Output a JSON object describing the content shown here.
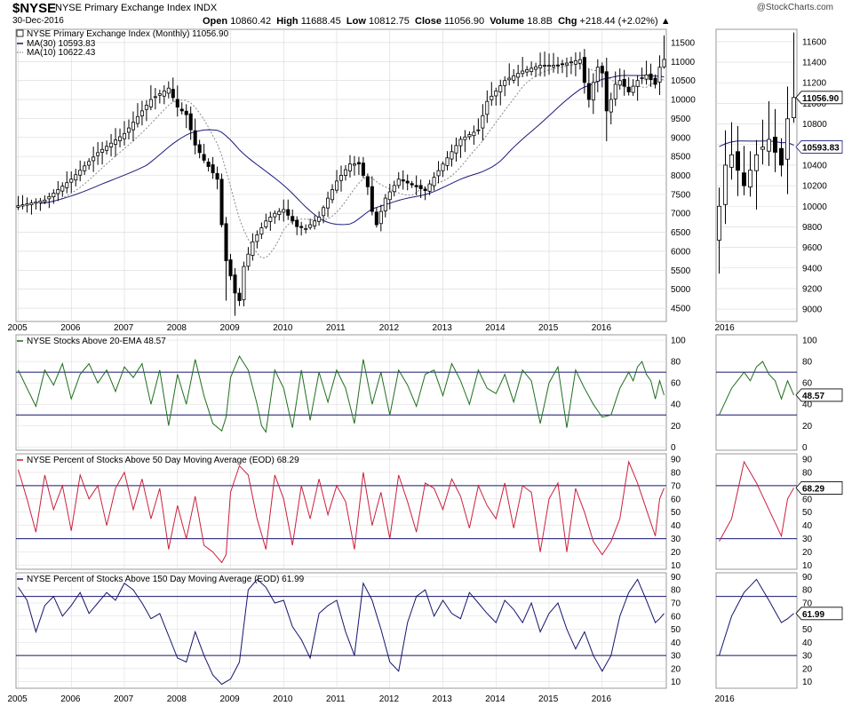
{
  "header": {
    "symbol": "$NYSE",
    "name": "NYSE Primary Exchange Index INDX",
    "date": "30-Dec-2016",
    "open_label": "Open",
    "open": "10860.42",
    "high_label": "High",
    "high": "11688.45",
    "low_label": "Low",
    "low": "10812.75",
    "close_label": "Close",
    "close": "11056.90",
    "volume_label": "Volume",
    "volume": "18.8B",
    "chg_label": "Chg",
    "chg": "+218.44 (+2.02%)",
    "watermark": "@StockCharts.com"
  },
  "colors": {
    "ma30": "#1a1a7a",
    "ma10": "#888888",
    "green": "#1e6e1e",
    "red": "#cc1e3c",
    "navy": "#14146e",
    "hline": "#14146e",
    "grid": "#d8d8d8"
  },
  "chart_data": [
    {
      "id": "price",
      "type": "candlestick",
      "title": "NYSE Primary Exchange Index (Monthly) 11056.90",
      "legend": [
        {
          "name": "MA(30) 10593.83",
          "style": "solid"
        },
        {
          "name": "MA(10) 10622.43",
          "style": "dotted"
        }
      ],
      "x_ticks": [
        "2005",
        "2006",
        "2007",
        "2008",
        "2009",
        "2010",
        "2011",
        "2012",
        "2013",
        "2014",
        "2015",
        "2016"
      ],
      "y_ticks": [
        4500,
        5000,
        5500,
        6000,
        6500,
        7000,
        7500,
        8000,
        8500,
        9000,
        9500,
        10000,
        10500,
        11000,
        11500
      ],
      "ylim": [
        4150,
        11850
      ],
      "close_anchors": [
        [
          0,
          7200
        ],
        [
          6,
          7350
        ],
        [
          12,
          7900
        ],
        [
          18,
          8600
        ],
        [
          24,
          9100
        ],
        [
          30,
          10000
        ],
        [
          34,
          10300
        ],
        [
          36,
          9800
        ],
        [
          38,
          9600
        ],
        [
          40,
          8800
        ],
        [
          42,
          8400
        ],
        [
          45,
          7900
        ],
        [
          46,
          6700
        ],
        [
          47,
          5750
        ],
        [
          48,
          5350
        ],
        [
          49,
          4900
        ],
        [
          50,
          4700
        ],
        [
          51,
          5600
        ],
        [
          53,
          6250
        ],
        [
          56,
          6800
        ],
        [
          58,
          7000
        ],
        [
          60,
          7100
        ],
        [
          63,
          6650
        ],
        [
          65,
          6600
        ],
        [
          68,
          6900
        ],
        [
          70,
          7400
        ],
        [
          72,
          7850
        ],
        [
          75,
          8300
        ],
        [
          77,
          8300
        ],
        [
          79,
          7700
        ],
        [
          80,
          7050
        ],
        [
          81,
          6700
        ],
        [
          83,
          7400
        ],
        [
          86,
          7900
        ],
        [
          89,
          7750
        ],
        [
          92,
          7600
        ],
        [
          96,
          8300
        ],
        [
          100,
          8950
        ],
        [
          104,
          9200
        ],
        [
          106,
          9950
        ],
        [
          110,
          10500
        ],
        [
          114,
          10750
        ],
        [
          118,
          10900
        ],
        [
          122,
          10900
        ],
        [
          127,
          11050
        ],
        [
          128,
          10450
        ],
        [
          129,
          10000
        ],
        [
          130,
          10450
        ],
        [
          131,
          10850
        ],
        [
          132,
          10700
        ],
        [
          133,
          9700
        ],
        [
          134,
          10000
        ],
        [
          135,
          10400
        ],
        [
          136,
          10500
        ],
        [
          138,
          10200
        ],
        [
          140,
          10500
        ],
        [
          142,
          10650
        ],
        [
          144,
          10400
        ],
        [
          145,
          10850
        ],
        [
          146,
          11056.9
        ]
      ],
      "last": {
        "open": 10860.42,
        "high": 11688.45,
        "low": 10812.75,
        "close": 11056.9
      },
      "value_labels": [
        {
          "series": "close",
          "text": "11056.90"
        },
        {
          "series": "ma30",
          "text": "10593.83"
        }
      ],
      "inset_x_ticks": [
        "2016"
      ],
      "inset_y_ticks": [
        9000,
        9200,
        9400,
        9600,
        9800,
        10000,
        10200,
        10400,
        10600,
        10800,
        11000,
        11200,
        11400,
        11600
      ],
      "inset_ylim": [
        8880,
        11720
      ]
    },
    {
      "id": "ema20",
      "type": "line",
      "title": "NYSE Stocks Above 20-EMA 48.57",
      "last_value": "48.57",
      "y_ticks": [
        0,
        20,
        40,
        60,
        80,
        100
      ],
      "ylim": [
        -3,
        105
      ],
      "hlines": [
        70,
        30
      ],
      "anchors": [
        [
          0,
          72
        ],
        [
          2,
          55
        ],
        [
          4,
          38
        ],
        [
          6,
          72
        ],
        [
          8,
          58
        ],
        [
          10,
          78
        ],
        [
          12,
          45
        ],
        [
          14,
          68
        ],
        [
          16,
          78
        ],
        [
          18,
          60
        ],
        [
          20,
          72
        ],
        [
          22,
          52
        ],
        [
          24,
          75
        ],
        [
          26,
          65
        ],
        [
          28,
          78
        ],
        [
          30,
          40
        ],
        [
          32,
          72
        ],
        [
          34,
          20
        ],
        [
          36,
          68
        ],
        [
          38,
          40
        ],
        [
          40,
          82
        ],
        [
          42,
          48
        ],
        [
          44,
          22
        ],
        [
          46,
          15
        ],
        [
          47,
          28
        ],
        [
          48,
          65
        ],
        [
          50,
          85
        ],
        [
          52,
          72
        ],
        [
          54,
          40
        ],
        [
          55,
          20
        ],
        [
          56,
          14
        ],
        [
          58,
          72
        ],
        [
          60,
          55
        ],
        [
          62,
          18
        ],
        [
          64,
          72
        ],
        [
          66,
          25
        ],
        [
          68,
          70
        ],
        [
          70,
          42
        ],
        [
          72,
          72
        ],
        [
          74,
          55
        ],
        [
          76,
          22
        ],
        [
          78,
          82
        ],
        [
          80,
          40
        ],
        [
          82,
          70
        ],
        [
          84,
          30
        ],
        [
          86,
          72
        ],
        [
          88,
          58
        ],
        [
          90,
          38
        ],
        [
          92,
          68
        ],
        [
          94,
          72
        ],
        [
          96,
          48
        ],
        [
          98,
          78
        ],
        [
          100,
          62
        ],
        [
          102,
          40
        ],
        [
          104,
          72
        ],
        [
          106,
          55
        ],
        [
          108,
          50
        ],
        [
          110,
          68
        ],
        [
          112,
          42
        ],
        [
          114,
          72
        ],
        [
          116,
          62
        ],
        [
          118,
          22
        ],
        [
          120,
          60
        ],
        [
          122,
          75
        ],
        [
          124,
          18
        ],
        [
          126,
          72
        ],
        [
          128,
          55
        ],
        [
          130,
          40
        ],
        [
          132,
          28
        ],
        [
          134,
          30
        ],
        [
          136,
          55
        ],
        [
          138,
          70
        ],
        [
          139,
          62
        ],
        [
          140,
          75
        ],
        [
          141,
          80
        ],
        [
          142,
          68
        ],
        [
          143,
          62
        ],
        [
          144,
          45
        ],
        [
          145,
          62
        ],
        [
          146,
          48.57
        ]
      ]
    },
    {
      "id": "pct50",
      "type": "line",
      "title": "NYSE Percent of Stocks Above 50 Day Moving Average (EOD) 68.29",
      "last_value": "68.29",
      "y_ticks": [
        10,
        20,
        30,
        40,
        50,
        60,
        70,
        80,
        90
      ],
      "ylim": [
        7,
        94
      ],
      "hlines": [
        70,
        30
      ],
      "anchors": [
        [
          0,
          82
        ],
        [
          2,
          60
        ],
        [
          4,
          35
        ],
        [
          6,
          78
        ],
        [
          8,
          52
        ],
        [
          10,
          70
        ],
        [
          12,
          36
        ],
        [
          14,
          78
        ],
        [
          16,
          60
        ],
        [
          18,
          70
        ],
        [
          20,
          40
        ],
        [
          22,
          68
        ],
        [
          24,
          80
        ],
        [
          26,
          52
        ],
        [
          28,
          75
        ],
        [
          30,
          45
        ],
        [
          32,
          68
        ],
        [
          34,
          22
        ],
        [
          36,
          55
        ],
        [
          38,
          30
        ],
        [
          40,
          62
        ],
        [
          42,
          25
        ],
        [
          44,
          20
        ],
        [
          46,
          12
        ],
        [
          47,
          18
        ],
        [
          48,
          65
        ],
        [
          50,
          85
        ],
        [
          52,
          78
        ],
        [
          54,
          45
        ],
        [
          56,
          22
        ],
        [
          58,
          78
        ],
        [
          60,
          60
        ],
        [
          62,
          25
        ],
        [
          64,
          70
        ],
        [
          66,
          45
        ],
        [
          68,
          75
        ],
        [
          70,
          48
        ],
        [
          72,
          70
        ],
        [
          74,
          58
        ],
        [
          76,
          22
        ],
        [
          78,
          80
        ],
        [
          80,
          40
        ],
        [
          82,
          65
        ],
        [
          84,
          30
        ],
        [
          86,
          78
        ],
        [
          88,
          58
        ],
        [
          90,
          35
        ],
        [
          92,
          72
        ],
        [
          94,
          68
        ],
        [
          96,
          52
        ],
        [
          98,
          75
        ],
        [
          100,
          62
        ],
        [
          102,
          38
        ],
        [
          104,
          70
        ],
        [
          106,
          55
        ],
        [
          108,
          45
        ],
        [
          110,
          72
        ],
        [
          112,
          38
        ],
        [
          114,
          70
        ],
        [
          116,
          65
        ],
        [
          118,
          20
        ],
        [
          120,
          60
        ],
        [
          122,
          72
        ],
        [
          124,
          20
        ],
        [
          126,
          68
        ],
        [
          128,
          50
        ],
        [
          130,
          28
        ],
        [
          132,
          18
        ],
        [
          134,
          28
        ],
        [
          136,
          45
        ],
        [
          138,
          88
        ],
        [
          140,
          72
        ],
        [
          142,
          52
        ],
        [
          144,
          32
        ],
        [
          145,
          60
        ],
        [
          146,
          68.29
        ]
      ]
    },
    {
      "id": "pct150",
      "type": "line",
      "title": "NYSE Percent of Stocks Above 150 Day Moving Average (EOD) 61.99",
      "last_value": "61.99",
      "y_ticks": [
        10,
        20,
        30,
        40,
        50,
        60,
        70,
        80,
        90
      ],
      "ylim": [
        5,
        93
      ],
      "hlines": [
        75,
        30
      ],
      "anchors": [
        [
          0,
          82
        ],
        [
          2,
          72
        ],
        [
          4,
          48
        ],
        [
          6,
          68
        ],
        [
          8,
          75
        ],
        [
          10,
          60
        ],
        [
          12,
          68
        ],
        [
          14,
          78
        ],
        [
          16,
          62
        ],
        [
          18,
          70
        ],
        [
          20,
          78
        ],
        [
          22,
          72
        ],
        [
          24,
          85
        ],
        [
          26,
          80
        ],
        [
          28,
          70
        ],
        [
          30,
          58
        ],
        [
          32,
          62
        ],
        [
          34,
          45
        ],
        [
          36,
          28
        ],
        [
          38,
          25
        ],
        [
          40,
          48
        ],
        [
          42,
          30
        ],
        [
          44,
          15
        ],
        [
          46,
          8
        ],
        [
          48,
          12
        ],
        [
          50,
          25
        ],
        [
          52,
          80
        ],
        [
          54,
          88
        ],
        [
          56,
          82
        ],
        [
          58,
          70
        ],
        [
          60,
          72
        ],
        [
          62,
          52
        ],
        [
          64,
          42
        ],
        [
          66,
          28
        ],
        [
          68,
          62
        ],
        [
          70,
          68
        ],
        [
          72,
          72
        ],
        [
          74,
          48
        ],
        [
          76,
          30
        ],
        [
          78,
          85
        ],
        [
          80,
          72
        ],
        [
          82,
          50
        ],
        [
          84,
          25
        ],
        [
          86,
          18
        ],
        [
          88,
          55
        ],
        [
          90,
          75
        ],
        [
          92,
          80
        ],
        [
          94,
          60
        ],
        [
          96,
          72
        ],
        [
          98,
          62
        ],
        [
          100,
          58
        ],
        [
          102,
          78
        ],
        [
          104,
          70
        ],
        [
          106,
          62
        ],
        [
          108,
          55
        ],
        [
          110,
          72
        ],
        [
          112,
          65
        ],
        [
          114,
          55
        ],
        [
          116,
          70
        ],
        [
          118,
          48
        ],
        [
          120,
          62
        ],
        [
          122,
          70
        ],
        [
          124,
          50
        ],
        [
          126,
          35
        ],
        [
          128,
          48
        ],
        [
          130,
          30
        ],
        [
          132,
          18
        ],
        [
          134,
          30
        ],
        [
          136,
          60
        ],
        [
          138,
          78
        ],
        [
          140,
          88
        ],
        [
          142,
          72
        ],
        [
          144,
          55
        ],
        [
          145,
          58
        ],
        [
          146,
          61.99
        ]
      ]
    }
  ]
}
